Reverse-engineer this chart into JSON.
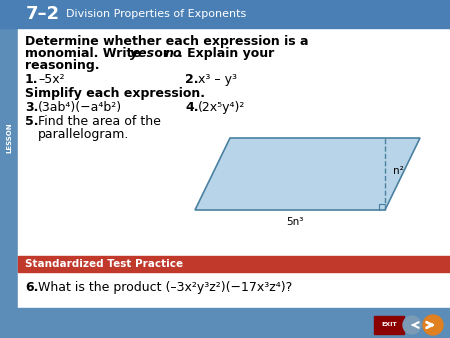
{
  "header_bg": "#4a7fb5",
  "header_text": "Division Properties of Exponents",
  "header_num": "7–2",
  "lesson_label": "LESSON",
  "main_bg": "#d6e4f0",
  "white_bg": "#ffffff",
  "body_text_color": "#000000",
  "title1": "Determine whether each expression is a",
  "title2_a": "monomial. Write ",
  "title2_b": "yes",
  "title2_c": " or ",
  "title2_d": "no",
  "title2_e": ". Explain your",
  "title3": "reasoning.",
  "q1_label": "1.",
  "q1_text": "–5x²",
  "q2_label": "2.",
  "q2_text": "x³ – y³",
  "simplify_title": "Simplify each expression.",
  "q3_label": "3.",
  "q3_text": "(3ab⁴)(−a⁴b²)",
  "q4_label": "4.",
  "q4_text": "(2x⁵y⁴)²",
  "q5_label": "5.",
  "q5_line1": "Find the area of the",
  "q5_line2": "parallelogram.",
  "para_label_base": "5n³",
  "para_label_height": "n²",
  "para_fill": "#b8d4e8",
  "para_edge": "#4a80a0",
  "std_bg": "#c0392b",
  "std_text": "Standardized Test Practice",
  "q6_label": "6.",
  "q6_text": "What is the product (–3x²y³z²)(−17x³z⁴)?",
  "footer_bg": "#5b8db8",
  "side_bg": "#5b8db8",
  "exit_bg": "#8b0000",
  "nav_bg": "#5b8db8",
  "play_bg": "#e08020"
}
